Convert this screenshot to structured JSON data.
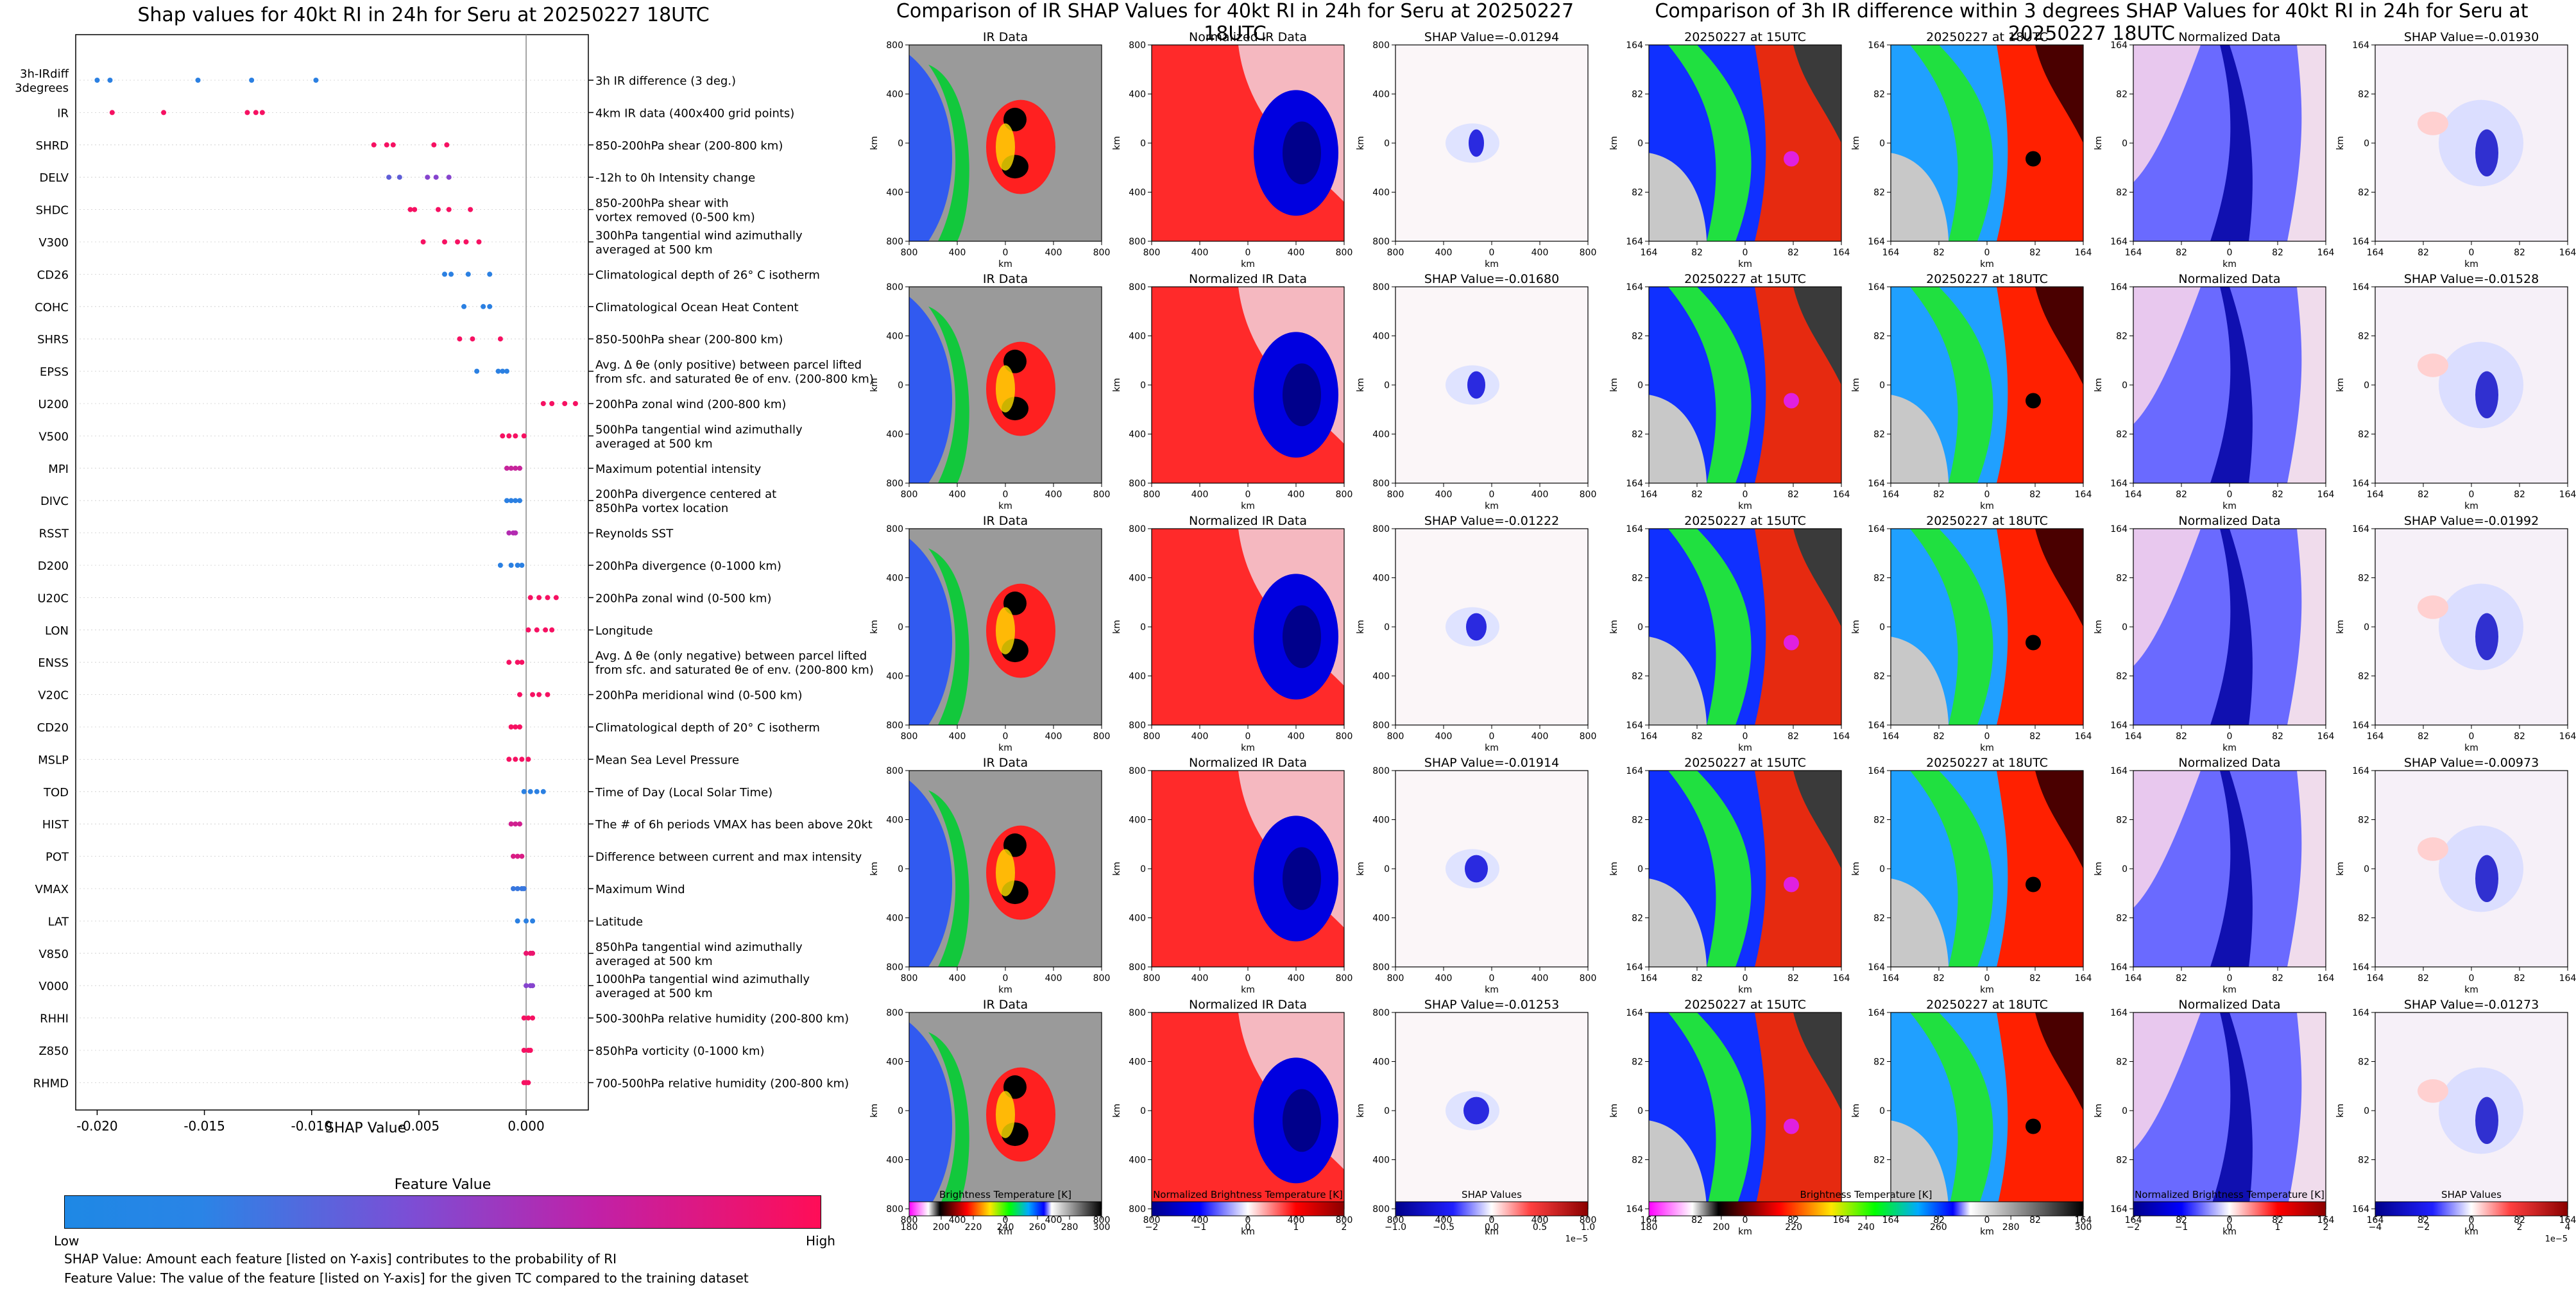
{
  "beeswarm": {
    "title": "Shap values for 40kt RI in 24h for Seru at 20250227 18UTC",
    "xlabel": "SHAP Value",
    "x_ticks": [
      "-0.020",
      "-0.015",
      "-0.010",
      "-0.005",
      "0.000"
    ],
    "colorbar_title": "Feature Value",
    "colorbar_low": "Low",
    "colorbar_high": "High",
    "note1": "SHAP Value: Amount each feature [listed on Y-axis] contributes to the probability of RI",
    "note2": "Feature Value: The value of the feature [listed on Y-axis] for the given TC compared to the training dataset"
  },
  "chart_data": {
    "type": "scatter",
    "title": "Shap values for 40kt RI in 24h for Seru at 20250227 18UTC",
    "xlabel": "SHAP Value",
    "xlim": [
      -0.021,
      0.0029
    ],
    "colors": {
      "low": "#1e88e5",
      "mid": "#a033c8",
      "high": "#ff0d57"
    },
    "features": [
      {
        "name": "3h-IRdiff\n3degrees",
        "desc": "3h IR difference (3 deg.)",
        "points": [
          [
            -0.02,
            0.05
          ],
          [
            -0.0194,
            0.05
          ],
          [
            -0.0153,
            0.05
          ],
          [
            -0.0128,
            0.05
          ],
          [
            -0.0098,
            0.05
          ]
        ]
      },
      {
        "name": "IR",
        "desc": "4km IR data (400x400 grid points)",
        "points": [
          [
            -0.0193,
            0.95
          ],
          [
            -0.0169,
            0.95
          ],
          [
            -0.013,
            0.95
          ],
          [
            -0.0126,
            0.95
          ],
          [
            -0.0123,
            0.95
          ]
        ]
      },
      {
        "name": "SHRD",
        "desc": "850-200hPa shear (200-800 km)",
        "points": [
          [
            -0.0071,
            0.95
          ],
          [
            -0.0065,
            0.95
          ],
          [
            -0.0062,
            0.95
          ],
          [
            -0.0043,
            0.95
          ],
          [
            -0.0037,
            0.95
          ]
        ]
      },
      {
        "name": "DELV",
        "desc": "-12h to 0h Intensity change",
        "points": [
          [
            -0.0064,
            0.25
          ],
          [
            -0.0059,
            0.25
          ],
          [
            -0.0046,
            0.4
          ],
          [
            -0.0042,
            0.4
          ],
          [
            -0.0036,
            0.4
          ]
        ]
      },
      {
        "name": "SHDC",
        "desc": "850-200hPa shear with\nvortex removed (0-500 km)",
        "points": [
          [
            -0.0054,
            0.95
          ],
          [
            -0.0052,
            0.95
          ],
          [
            -0.0041,
            0.95
          ],
          [
            -0.0036,
            0.95
          ],
          [
            -0.0026,
            0.95
          ]
        ]
      },
      {
        "name": "V300",
        "desc": "300hPa tangential wind azimuthally\naveraged at 500 km",
        "points": [
          [
            -0.0048,
            0.95
          ],
          [
            -0.0038,
            0.95
          ],
          [
            -0.0032,
            0.95
          ],
          [
            -0.0028,
            0.95
          ],
          [
            -0.0022,
            0.95
          ]
        ]
      },
      {
        "name": "CD26",
        "desc": "Climatological depth of 26° C isotherm",
        "points": [
          [
            -0.0038,
            0.05
          ],
          [
            -0.0035,
            0.05
          ],
          [
            -0.0027,
            0.05
          ],
          [
            -0.0017,
            0.05
          ]
        ]
      },
      {
        "name": "COHC",
        "desc": "Climatological Ocean Heat Content",
        "points": [
          [
            -0.0029,
            0.05
          ],
          [
            -0.002,
            0.05
          ],
          [
            -0.0017,
            0.05
          ]
        ]
      },
      {
        "name": "SHRS",
        "desc": "850-500hPa shear (200-800 km)",
        "points": [
          [
            -0.0031,
            0.95
          ],
          [
            -0.0025,
            0.95
          ],
          [
            -0.0012,
            0.95
          ]
        ]
      },
      {
        "name": "EPSS",
        "desc": "Avg. Δ θe (only positive) between parcel lifted\nfrom sfc. and saturated θe of env. (200-800 km)",
        "points": [
          [
            -0.0023,
            0.05
          ],
          [
            -0.0013,
            0.05
          ],
          [
            -0.0011,
            0.05
          ],
          [
            -0.0009,
            0.05
          ]
        ]
      },
      {
        "name": "U200",
        "desc": "200hPa zonal wind (200-800 km)",
        "points": [
          [
            0.0008,
            0.95
          ],
          [
            0.0012,
            0.95
          ],
          [
            0.0018,
            0.95
          ],
          [
            0.0023,
            0.95
          ]
        ]
      },
      {
        "name": "V500",
        "desc": "500hPa tangential wind azimuthally\naveraged at 500 km",
        "points": [
          [
            -0.0011,
            0.95
          ],
          [
            -0.0008,
            0.95
          ],
          [
            -0.0005,
            0.95
          ],
          [
            -0.0001,
            0.95
          ]
        ]
      },
      {
        "name": "MPI",
        "desc": "Maximum potential intensity",
        "points": [
          [
            -0.0009,
            0.7
          ],
          [
            -0.0007,
            0.7
          ],
          [
            -0.0005,
            0.7
          ],
          [
            -0.0003,
            0.7
          ]
        ]
      },
      {
        "name": "DIVC",
        "desc": "200hPa divergence centered at\n850hPa vortex location",
        "points": [
          [
            -0.0009,
            0.05
          ],
          [
            -0.0007,
            0.05
          ],
          [
            -0.0005,
            0.05
          ],
          [
            -0.0003,
            0.05
          ]
        ]
      },
      {
        "name": "RSST",
        "desc": "Reynolds SST",
        "points": [
          [
            -0.0008,
            0.6
          ],
          [
            -0.0006,
            0.6
          ],
          [
            -0.0005,
            0.6
          ]
        ]
      },
      {
        "name": "D200",
        "desc": "200hPa divergence (0-1000 km)",
        "points": [
          [
            -0.0012,
            0.05
          ],
          [
            -0.0007,
            0.05
          ],
          [
            -0.0004,
            0.05
          ],
          [
            -0.0002,
            0.05
          ]
        ]
      },
      {
        "name": "U20C",
        "desc": "200hPa zonal wind (0-500 km)",
        "points": [
          [
            0.0002,
            0.95
          ],
          [
            0.0006,
            0.95
          ],
          [
            0.001,
            0.95
          ],
          [
            0.0014,
            0.95
          ]
        ]
      },
      {
        "name": "LON",
        "desc": "Longitude",
        "points": [
          [
            0.0001,
            0.95
          ],
          [
            0.0005,
            0.95
          ],
          [
            0.0009,
            0.95
          ],
          [
            0.0012,
            0.95
          ]
        ]
      },
      {
        "name": "ENSS",
        "desc": "Avg. Δ θe (only negative) between parcel lifted\nfrom sfc. and saturated θe of env. (200-800 km)",
        "points": [
          [
            -0.0008,
            0.95
          ],
          [
            -0.0004,
            0.95
          ],
          [
            -0.0002,
            0.95
          ]
        ]
      },
      {
        "name": "V20C",
        "desc": "200hPa meridional wind (0-500 km)",
        "points": [
          [
            -0.0003,
            0.95
          ],
          [
            0.0003,
            0.95
          ],
          [
            0.0006,
            0.95
          ],
          [
            0.001,
            0.95
          ]
        ]
      },
      {
        "name": "CD20",
        "desc": "Climatological depth of 20° C isotherm",
        "points": [
          [
            -0.0007,
            0.95
          ],
          [
            -0.0005,
            0.95
          ],
          [
            -0.0003,
            0.95
          ]
        ]
      },
      {
        "name": "MSLP",
        "desc": "Mean Sea Level Pressure",
        "points": [
          [
            -0.0008,
            0.95
          ],
          [
            -0.0005,
            0.95
          ],
          [
            -0.0002,
            0.95
          ],
          [
            0.0001,
            0.95
          ]
        ]
      },
      {
        "name": "TOD",
        "desc": "Time of Day (Local Solar Time)",
        "points": [
          [
            -0.0001,
            0.05
          ],
          [
            0.0002,
            0.05
          ],
          [
            0.0005,
            0.05
          ],
          [
            0.0008,
            0.05
          ]
        ]
      },
      {
        "name": "HIST",
        "desc": "The # of 6h periods VMAX has been above 20kt",
        "points": [
          [
            -0.0007,
            0.75
          ],
          [
            -0.0005,
            0.75
          ],
          [
            -0.0003,
            0.75
          ]
        ]
      },
      {
        "name": "POT",
        "desc": "Difference between current and max intensity",
        "points": [
          [
            -0.0006,
            0.8
          ],
          [
            -0.0004,
            0.8
          ],
          [
            -0.0002,
            0.8
          ]
        ]
      },
      {
        "name": "VMAX",
        "desc": "Maximum Wind",
        "points": [
          [
            -0.0006,
            0.1
          ],
          [
            -0.0004,
            0.1
          ],
          [
            -0.0002,
            0.1
          ],
          [
            -0.0001,
            0.1
          ]
        ]
      },
      {
        "name": "LAT",
        "desc": "Latitude",
        "points": [
          [
            -0.0004,
            0.05
          ],
          [
            0.0,
            0.05
          ],
          [
            0.0003,
            0.05
          ]
        ]
      },
      {
        "name": "V850",
        "desc": "850hPa tangential wind azimuthally\naveraged at 500 km",
        "points": [
          [
            0.0,
            0.9
          ],
          [
            0.0002,
            0.9
          ],
          [
            0.0003,
            0.9
          ]
        ]
      },
      {
        "name": "V000",
        "desc": "1000hPa tangential wind azimuthally\naveraged at 500 km",
        "points": [
          [
            0.0,
            0.4
          ],
          [
            0.0002,
            0.4
          ],
          [
            0.0003,
            0.4
          ]
        ]
      },
      {
        "name": "RHHI",
        "desc": "500-300hPa relative humidity (200-800 km)",
        "points": [
          [
            -0.0001,
            0.95
          ],
          [
            0.0001,
            0.95
          ],
          [
            0.0003,
            0.95
          ]
        ]
      },
      {
        "name": "Z850",
        "desc": "850hPa vorticity (0-1000 km)",
        "points": [
          [
            -0.0001,
            0.95
          ],
          [
            0.0001,
            0.95
          ],
          [
            0.0002,
            0.95
          ]
        ]
      },
      {
        "name": "RHMD",
        "desc": "700-500hPa relative humidity (200-800 km)",
        "points": [
          [
            -0.0001,
            0.95
          ],
          [
            0.0,
            0.95
          ],
          [
            0.0001,
            0.95
          ]
        ]
      }
    ]
  },
  "ir_panel": {
    "title": "Comparison of IR SHAP Values for 40kt RI in 24h for Seru at 20250227 18UTC",
    "col_titles": [
      "IR Data",
      "Normalized IR Data"
    ],
    "shap_titles": [
      "SHAP Value=-0.01294",
      "SHAP Value=-0.01680",
      "SHAP Value=-0.01222",
      "SHAP Value=-0.01914",
      "SHAP Value=-0.01253"
    ],
    "x_ticks": [
      "800",
      "400",
      "0",
      "400",
      "800"
    ],
    "y_ticks": [
      "800",
      "400",
      "0",
      "400",
      "800"
    ],
    "axis_label": "km",
    "colorbars": [
      {
        "label": "Brightness Temperature [K]",
        "ticks": [
          "180",
          "200",
          "220",
          "240",
          "260",
          "280",
          "300"
        ]
      },
      {
        "label": "Normalized Brightness Temperature [K]",
        "ticks": [
          "−2",
          "−1",
          "0",
          "1",
          "2"
        ]
      },
      {
        "label": "SHAP Values",
        "ticks": [
          "−1.0",
          "−0.5",
          "0.0",
          "0.5",
          "1.0"
        ],
        "exponent": "1e−5"
      }
    ]
  },
  "diff_panel": {
    "title": "Comparison of 3h IR difference within 3 degrees SHAP Values for 40kt RI in 24h for Seru at 20250227 18UTC",
    "col_titles": [
      "20250227 at 15UTC",
      "20250227 at 18UTC",
      "Normalized Data"
    ],
    "shap_titles": [
      "SHAP Value=-0.01930",
      "SHAP Value=-0.01528",
      "SHAP Value=-0.01992",
      "SHAP Value=-0.00973",
      "SHAP Value=-0.01273"
    ],
    "x_ticks": [
      "164",
      "82",
      "0",
      "82",
      "164"
    ],
    "y_ticks": [
      "164",
      "82",
      "0",
      "82",
      "164"
    ],
    "axis_label": "km",
    "colorbars": [
      {
        "label": "Brightness Temperature [K]",
        "ticks": [
          "180",
          "200",
          "220",
          "240",
          "260",
          "280",
          "300"
        ]
      },
      {
        "label": "Normalized Brightness Temperature [K]",
        "ticks": [
          "−2",
          "−1",
          "0",
          "1",
          "2"
        ]
      },
      {
        "label": "SHAP Values",
        "ticks": [
          "−4",
          "−2",
          "0",
          "2",
          "4"
        ],
        "exponent": "1e−5"
      }
    ]
  }
}
